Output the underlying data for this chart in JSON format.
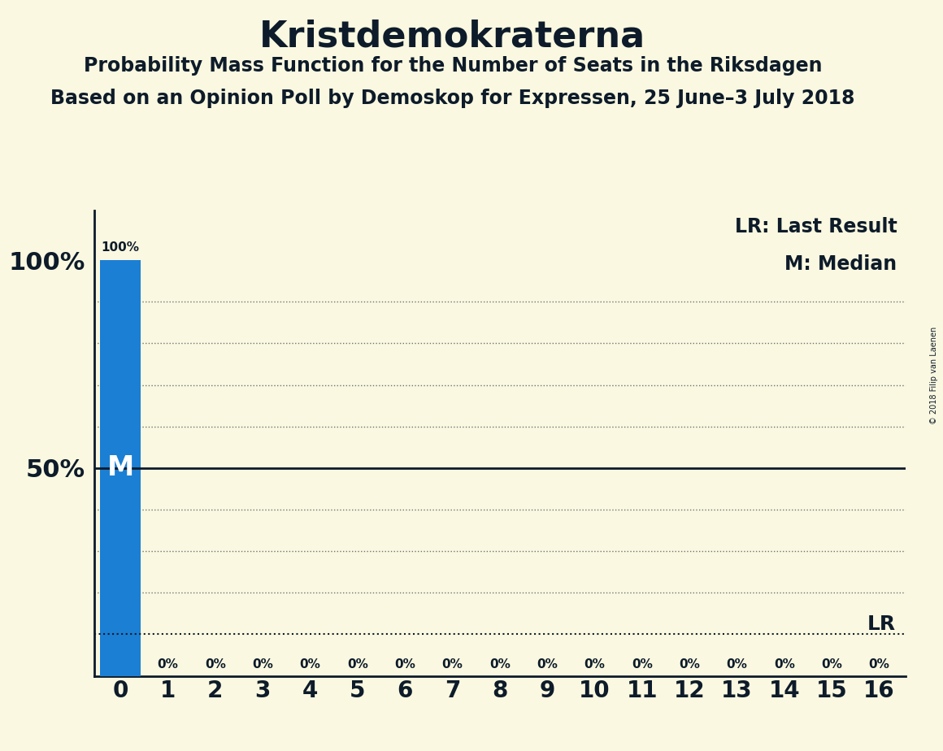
{
  "title": "Kristdemokraterna",
  "subtitle1": "Probability Mass Function for the Number of Seats in the Riksdagen",
  "subtitle2": "Based on an Opinion Poll by Demoskop for Expressen, 25 June–3 July 2018",
  "copyright": "© 2018 Filip van Laenen",
  "bar_values": [
    1.0,
    0.0,
    0.0,
    0.0,
    0.0,
    0.0,
    0.0,
    0.0,
    0.0,
    0.0,
    0.0,
    0.0,
    0.0,
    0.0,
    0.0,
    0.0,
    0.0
  ],
  "bar_labels": [
    "100%",
    "0%",
    "0%",
    "0%",
    "0%",
    "0%",
    "0%",
    "0%",
    "0%",
    "0%",
    "0%",
    "0%",
    "0%",
    "0%",
    "0%",
    "0%",
    "0%"
  ],
  "x_labels": [
    "0",
    "1",
    "2",
    "3",
    "4",
    "5",
    "6",
    "7",
    "8",
    "9",
    "10",
    "11",
    "12",
    "13",
    "14",
    "15",
    "16"
  ],
  "bar_color": "#1B7FD4",
  "background_color": "#FAF8E0",
  "title_color": "#0D1B2A",
  "median_value": 0.5,
  "lr_value": 0.1,
  "legend_lr": "LR: Last Result",
  "legend_m": "M: Median",
  "dotted_lines": [
    0.1,
    0.2,
    0.3,
    0.4,
    0.6,
    0.7,
    0.8,
    0.9
  ],
  "lr_line_value": 0.1,
  "shown_yticks": [
    0.5,
    1.0
  ],
  "shown_ytick_labels": [
    "50%",
    "100%"
  ]
}
